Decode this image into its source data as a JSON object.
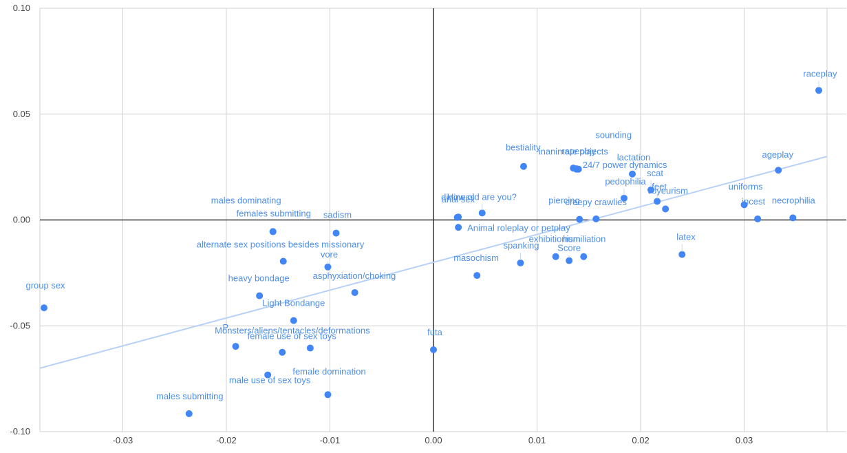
{
  "chart_data": {
    "type": "scatter",
    "title": "",
    "xlabel": "",
    "ylabel": "",
    "xlim": [
      -0.038,
      0.038
    ],
    "ylim": [
      -0.1,
      0.1
    ],
    "x_ticks": [
      -0.03,
      -0.02,
      -0.01,
      0.0,
      0.01,
      0.02,
      0.03
    ],
    "x_tick_labels": [
      "-0.03",
      "-0.02",
      "-0.01",
      "0.00",
      "0.01",
      "0.02",
      "0.03"
    ],
    "y_ticks": [
      -0.1,
      -0.05,
      0.0,
      0.05,
      0.1
    ],
    "y_tick_labels": [
      "-0.10",
      "-0.05",
      "0.00",
      "0.05",
      "0.10"
    ],
    "grid": true,
    "trendline": {
      "x": [
        -0.038,
        0.038
      ],
      "y": [
        -0.07,
        0.03
      ]
    },
    "points": [
      {
        "label": "raceplay",
        "x": 0.0372,
        "y": 0.0612
      },
      {
        "label": "ageplay",
        "x": 0.0333,
        "y": 0.0235
      },
      {
        "label": "uniforms",
        "x": 0.03,
        "y": 0.0072
      },
      {
        "label": "incest",
        "x": 0.0313,
        "y": 0.0005
      },
      {
        "label": "necrophilia",
        "x": 0.0347,
        "y": 0.001
      },
      {
        "label": "latex",
        "x": 0.024,
        "y": -0.0163
      },
      {
        "label": "voyeurism",
        "x": 0.0224,
        "y": 0.0052
      },
      {
        "label": "feet",
        "x": 0.0216,
        "y": 0.0088
      },
      {
        "label": "scat",
        "x": 0.021,
        "y": 0.0142
      },
      {
        "label": "pedophilia",
        "x": 0.0184,
        "y": 0.0103
      },
      {
        "label": "lactation",
        "x": 0.0192,
        "y": 0.0217
      },
      {
        "label": "sounding",
        "x": 0.014,
        "y": 0.024
      },
      {
        "label": "24/7 power dynamics",
        "x": 0.0138,
        "y": 0.0242
      },
      {
        "label": "rapeplay",
        "x": 0.0135,
        "y": 0.0245
      },
      {
        "label": "inanimate objects",
        "x": 0.0138,
        "y": 0.024
      },
      {
        "label": "bestiality",
        "x": 0.0087,
        "y": 0.0253
      },
      {
        "label": "piercing",
        "x": 0.0141,
        "y": 0.0003
      },
      {
        "label": "creepy crawlies",
        "x": 0.0157,
        "y": 0.0005
      },
      {
        "label": "humiliation",
        "x": 0.0145,
        "y": -0.0173
      },
      {
        "label": "exhibitionism",
        "x": 0.0118,
        "y": -0.0173
      },
      {
        "label": "Score",
        "x": 0.0131,
        "y": -0.0192
      },
      {
        "label": "spanking",
        "x": 0.0084,
        "y": -0.0203
      },
      {
        "label": "masochism",
        "x": 0.0042,
        "y": -0.0262
      },
      {
        "label": "Animal roleplay or petplay",
        "x": 0.0024,
        "y": -0.0035
      },
      {
        "label": "anal sex",
        "x": 0.0023,
        "y": 0.0012
      },
      {
        "label": "dirtiness",
        "x": 0.0024,
        "y": 0.0014
      },
      {
        "label": "How old are you?",
        "x": 0.0047,
        "y": 0.0033
      },
      {
        "label": "futa",
        "x": 0.0,
        "y": -0.0613
      },
      {
        "label": "sadism",
        "x": -0.0094,
        "y": -0.0062
      },
      {
        "label": "vore",
        "x": -0.0102,
        "y": -0.0222
      },
      {
        "label": "asphyxiation/choking",
        "x": -0.0076,
        "y": -0.0343
      },
      {
        "label": "males dominating",
        "x": -0.0155,
        "y": -0.0055
      },
      {
        "label": "females submitting",
        "x": -0.0155,
        "y": -0.0055
      },
      {
        "label": "alternate sex positions besides missionary",
        "x": -0.0145,
        "y": -0.0195
      },
      {
        "label": "heavy bondage",
        "x": -0.0168,
        "y": -0.0358
      },
      {
        "label": "Light Bondange",
        "x": -0.0135,
        "y": -0.0475
      },
      {
        "label": "Monsters/aliens/tentacles/deformations",
        "x": -0.0119,
        "y": -0.0605
      },
      {
        "label": "female use of sex toys",
        "x": -0.0146,
        "y": -0.0625
      },
      {
        "label": "P",
        "x": -0.0191,
        "y": -0.0597
      },
      {
        "label": "male use of sex toys",
        "x": -0.016,
        "y": -0.0732
      },
      {
        "label": "female domination",
        "x": -0.0102,
        "y": -0.0825
      },
      {
        "label": "males submitting",
        "x": -0.0236,
        "y": -0.0915
      },
      {
        "label": "group sex",
        "x": -0.0376,
        "y": -0.0415
      }
    ]
  }
}
